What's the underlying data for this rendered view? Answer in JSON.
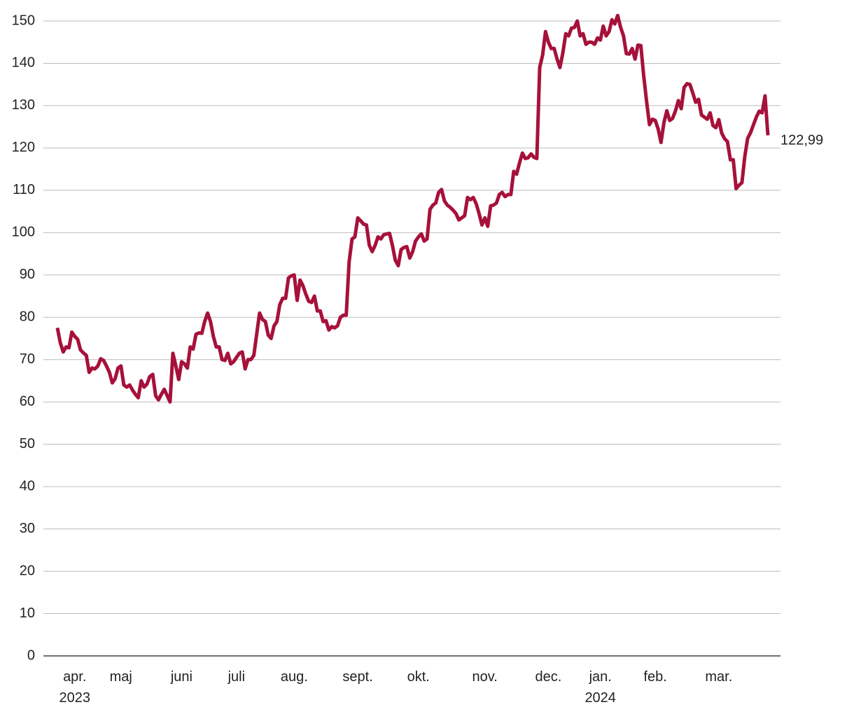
{
  "chart_data": {
    "type": "line",
    "categories": [
      null,
      null,
      null,
      null,
      null,
      null,
      "apr. 2023",
      null,
      null,
      null,
      null,
      null,
      null,
      null,
      null,
      null,
      null,
      null,
      null,
      null,
      null,
      null,
      "maj",
      null,
      null,
      null,
      null,
      null,
      null,
      null,
      null,
      null,
      null,
      null,
      null,
      null,
      null,
      null,
      null,
      null,
      null,
      null,
      null,
      "juni",
      null,
      null,
      null,
      null,
      null,
      null,
      null,
      null,
      null,
      null,
      null,
      null,
      null,
      null,
      null,
      null,
      null,
      null,
      "juli",
      null,
      null,
      null,
      null,
      null,
      null,
      null,
      null,
      null,
      null,
      null,
      null,
      null,
      null,
      null,
      null,
      null,
      null,
      null,
      "aug.",
      null,
      null,
      null,
      null,
      null,
      null,
      null,
      null,
      null,
      null,
      null,
      null,
      null,
      null,
      null,
      null,
      null,
      null,
      null,
      null,
      null,
      "sept.",
      null,
      null,
      null,
      null,
      null,
      null,
      null,
      null,
      null,
      null,
      null,
      null,
      null,
      null,
      null,
      null,
      null,
      null,
      null,
      null,
      "okt.",
      null,
      null,
      null,
      null,
      null,
      null,
      null,
      null,
      null,
      null,
      null,
      null,
      null,
      null,
      null,
      null,
      null,
      null,
      null,
      null,
      null,
      null,
      "nov.",
      null,
      null,
      null,
      null,
      null,
      null,
      null,
      null,
      null,
      null,
      null,
      null,
      null,
      null,
      null,
      null,
      null,
      null,
      null,
      null,
      null,
      "dec.",
      null,
      null,
      null,
      null,
      null,
      null,
      null,
      null,
      null,
      null,
      null,
      null,
      null,
      null,
      null,
      null,
      null,
      "jan. 2024",
      null,
      null,
      null,
      null,
      null,
      null,
      null,
      null,
      null,
      null,
      null,
      null,
      null,
      null,
      null,
      null,
      null,
      null,
      "feb.",
      null,
      null,
      null,
      null,
      null,
      null,
      null,
      null,
      null,
      null,
      null,
      null,
      null,
      null,
      null,
      null,
      null,
      null,
      null,
      null,
      null,
      "mar.",
      null,
      null,
      null,
      null,
      null,
      null,
      null,
      null,
      null,
      null,
      null,
      null,
      null,
      null,
      null,
      null,
      null
    ],
    "series": [
      {
        "color": "#a6113a",
        "values": [
          77.5,
          74,
          71.8,
          73,
          72.8,
          76.5,
          75.5,
          74.8,
          72.3,
          71.6,
          71,
          67,
          68,
          67.8,
          68.5,
          70.2,
          69.8,
          68.5,
          67,
          64.5,
          65.5,
          68,
          68.5,
          64,
          63.5,
          64,
          62.8,
          61.8,
          61,
          65,
          63.5,
          64.2,
          66,
          66.5,
          61.5,
          60.5,
          61.8,
          63,
          61.5,
          60,
          71.5,
          68.5,
          65.3,
          69.5,
          69,
          68,
          73,
          72.5,
          76,
          76.3,
          76.2,
          79,
          81,
          79,
          75.5,
          73,
          73,
          70,
          69.8,
          71.5,
          69,
          69.5,
          70.5,
          71.5,
          71.8,
          67.8,
          70,
          70,
          71,
          76,
          81,
          79.5,
          79,
          75.8,
          75,
          78,
          79,
          83,
          84.5,
          84.5,
          89.3,
          89.8,
          90,
          84,
          88.8,
          87.5,
          85.5,
          83.8,
          83.5,
          85,
          81.5,
          81.5,
          79,
          79.2,
          77,
          77.8,
          77.5,
          78,
          80,
          80.5,
          80.5,
          93,
          98.5,
          99,
          103.5,
          102.8,
          102,
          101.8,
          97,
          95.5,
          97,
          99,
          98.5,
          99.5,
          99.7,
          99.8,
          97,
          93.5,
          92.2,
          96,
          96.5,
          96.7,
          94,
          95.5,
          98,
          99,
          99.7,
          98,
          98.5,
          105.5,
          106.5,
          107,
          109.5,
          110.2,
          107.5,
          106.5,
          106,
          105.3,
          104.5,
          103,
          103.5,
          104,
          108.3,
          107.8,
          108.3,
          106.8,
          104.5,
          101.8,
          103.5,
          101.5,
          106.3,
          106.5,
          107,
          109,
          109.5,
          108.5,
          109,
          109,
          114.5,
          113.8,
          116.5,
          118.8,
          117.5,
          117.7,
          118.6,
          117.8,
          117.5,
          139,
          142,
          147.5,
          145,
          143.5,
          143.5,
          141,
          139,
          142.5,
          147,
          146.5,
          148.3,
          148.5,
          150,
          146.5,
          147,
          144.5,
          145,
          145,
          144.5,
          146,
          145.5,
          148.8,
          146.5,
          147.5,
          150.3,
          149.3,
          151.3,
          148.5,
          146.5,
          142.3,
          142.2,
          143.5,
          141,
          144.3,
          144.2,
          137,
          131,
          125.5,
          126.8,
          126.5,
          124.5,
          121.3,
          126,
          128.8,
          126.5,
          127,
          128.8,
          131.2,
          129.3,
          134.3,
          135.2,
          135,
          133,
          130.8,
          131.5,
          127.8,
          127.3,
          126.8,
          128.3,
          125.3,
          124.8,
          126.7,
          123.5,
          122.2,
          121.5,
          117.2,
          117.2,
          110.4,
          111.2,
          111.8,
          118,
          122.3,
          123.6,
          125.5,
          127.3,
          128.7,
          128.3,
          132.3,
          122.99
        ],
        "end_label": "122,99"
      }
    ],
    "ylim": [
      0,
      150
    ],
    "yticks": [
      0,
      10,
      20,
      30,
      40,
      50,
      60,
      70,
      80,
      90,
      100,
      110,
      120,
      130,
      140,
      150
    ],
    "grid": true
  }
}
